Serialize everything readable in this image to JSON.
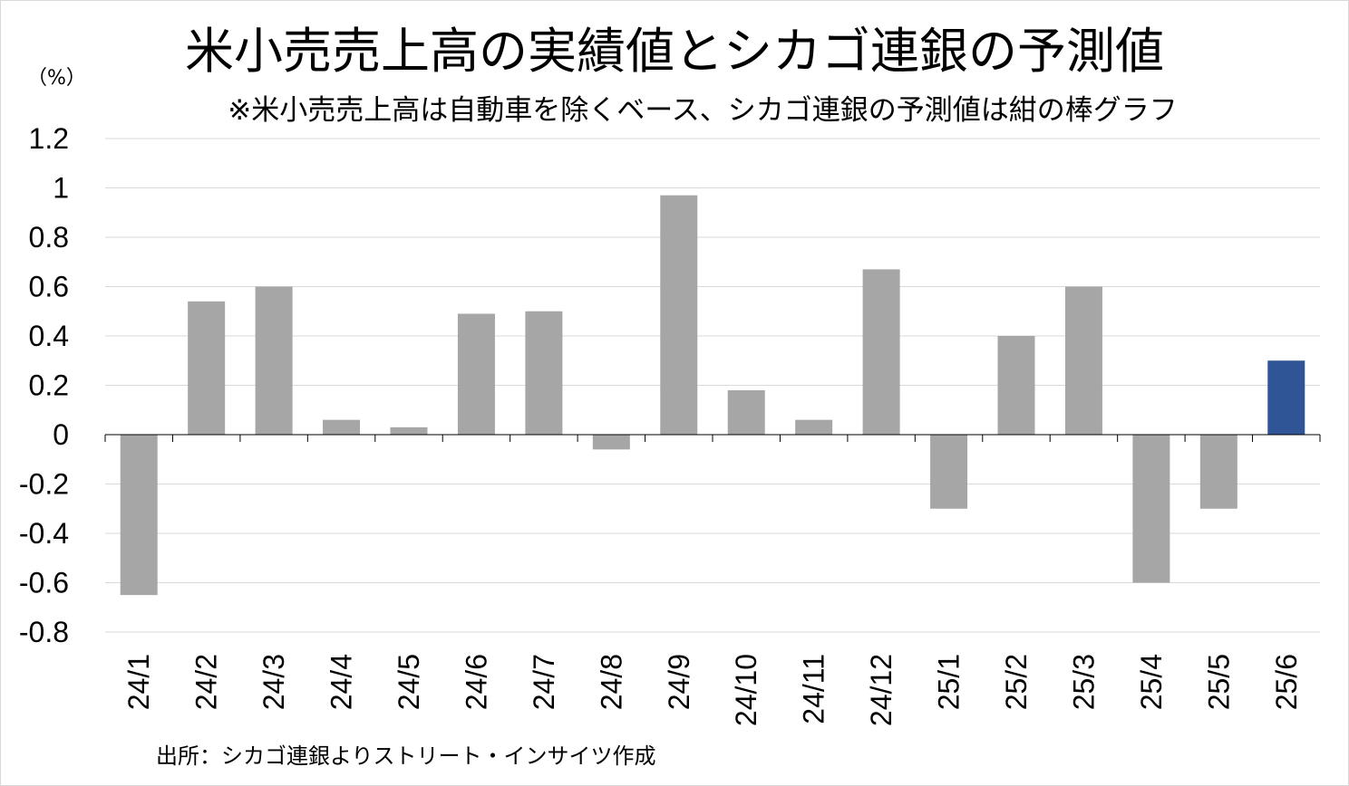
{
  "chart_data": {
    "type": "bar",
    "title": "米小売売上高の実績値とシカゴ連銀の予測値",
    "subtitle": "※米小売売上高は自動車を除くベース、シカゴ連銀の予測値は紺の棒グラフ",
    "unit_label": "（%）",
    "source": "出所：シカゴ連銀よりストリート・インサイツ作成",
    "categories": [
      "24/1",
      "24/2",
      "24/3",
      "24/4",
      "24/5",
      "24/6",
      "24/7",
      "24/8",
      "24/9",
      "24/10",
      "24/11",
      "24/12",
      "25/1",
      "25/2",
      "25/3",
      "25/4",
      "25/5",
      "25/6"
    ],
    "values": [
      -0.65,
      0.54,
      0.6,
      0.06,
      0.03,
      0.49,
      0.5,
      -0.06,
      0.97,
      0.18,
      0.06,
      0.67,
      -0.3,
      0.4,
      0.6,
      -0.6,
      -0.3,
      0.3
    ],
    "ylim": [
      -0.8,
      1.2
    ],
    "yticks": [
      "1.2",
      "1",
      "0.8",
      "0.6",
      "0.4",
      "0.2",
      "0",
      "-0.2",
      "-0.4",
      "-0.6",
      "-0.8"
    ],
    "ytick_values": [
      1.2,
      1,
      0.8,
      0.6,
      0.4,
      0.2,
      0,
      -0.2,
      -0.4,
      -0.6,
      -0.8
    ],
    "bar_colors": {
      "actual": "#a6a6a6",
      "forecast": "#2f5597"
    },
    "forecast_index": 17,
    "grid": true
  }
}
